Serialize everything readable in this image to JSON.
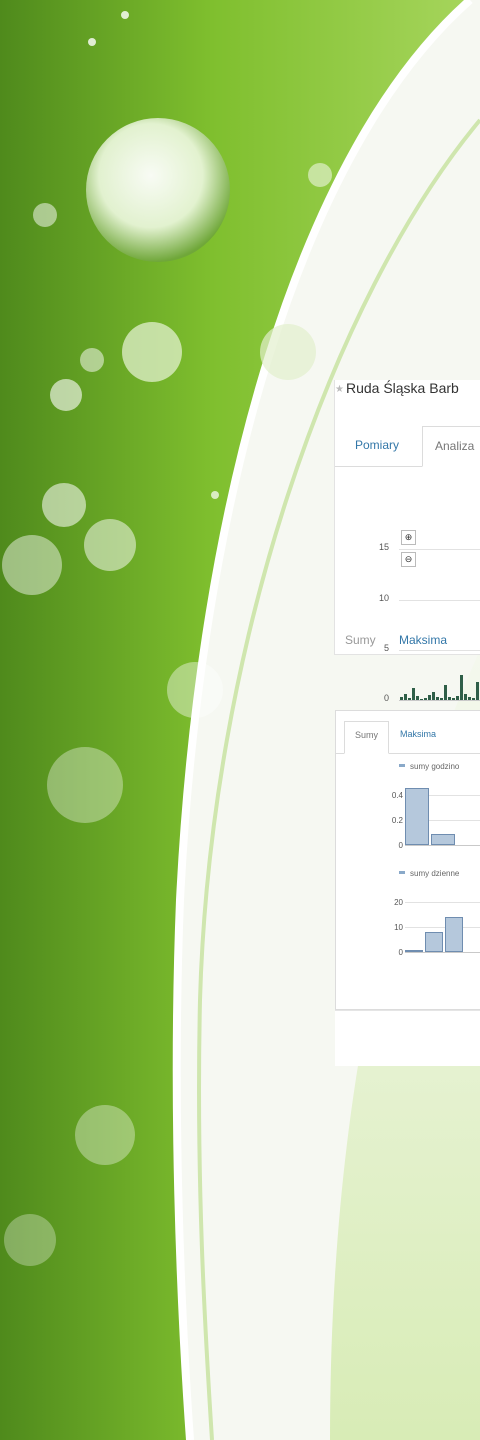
{
  "colors": {
    "green_dark": "#4f8a1c",
    "green_light": "#a6d55c",
    "panel_bg": "#ffffff",
    "link": "#3377a8",
    "bar_fill": "#b5c8dc",
    "bar_stroke": "#6f8db0"
  },
  "panel1": {
    "title": "Ruda Śląska Barb",
    "tabs": [
      {
        "label": "Pomiary"
      },
      {
        "label": "Analiza"
      }
    ],
    "bottom_tabs": [
      {
        "label": "Sumy"
      },
      {
        "label": "Maksima"
      }
    ],
    "zoom_in_icon": "zoom-in-icon",
    "zoom_out_icon": "zoom-out-icon"
  },
  "panel2": {
    "tabs": [
      {
        "label": "Sumy"
      },
      {
        "label": "Maksima"
      }
    ],
    "legend_hourly": "sumy godzino",
    "legend_daily": "sumy dzienne"
  },
  "chart_data": [
    {
      "type": "area",
      "ylim": [
        0,
        15
      ],
      "y_ticks": [
        "0",
        "5",
        "10",
        "15"
      ],
      "values": [
        0.3,
        0.6,
        0.2,
        1.2,
        0.4,
        0.1,
        0.2,
        0.5,
        0.8,
        0.3,
        0.2,
        1.5,
        0.3,
        0.2,
        0.4,
        2.5,
        0.6,
        0.3,
        0.2,
        1.8
      ]
    },
    {
      "type": "bar",
      "series": [
        {
          "name": "sumy godzino",
          "values": [
            0.46,
            0.09
          ]
        }
      ],
      "ylim": [
        0,
        0.4
      ],
      "y_ticks": [
        "0",
        "0.2",
        "0.4"
      ]
    },
    {
      "type": "bar",
      "series": [
        {
          "name": "sumy dzienne",
          "values": [
            1,
            8,
            14
          ]
        }
      ],
      "ylim": [
        0,
        20
      ],
      "y_ticks": [
        "0",
        "10",
        "20"
      ]
    }
  ]
}
